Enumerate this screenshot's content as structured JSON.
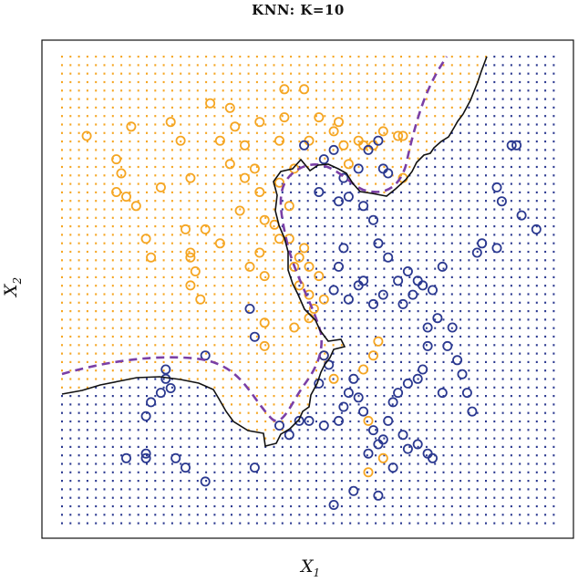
{
  "chart_data": {
    "type": "scatter",
    "title": "KNN: K=10",
    "xlabel": "X",
    "xlabel_sub": "1",
    "ylabel": "X",
    "ylabel_sub": "2",
    "xlim": [
      0,
      1
    ],
    "ylim": [
      0,
      1
    ],
    "grid_background": true,
    "colors": {
      "orange": "#f5a623",
      "blue": "#2b3990",
      "boundary": "#111111",
      "bayes": "#7a3fa6"
    },
    "series": [
      {
        "color": "orange",
        "points": [
          [
            0.05,
            0.83
          ],
          [
            0.11,
            0.78
          ],
          [
            0.14,
            0.85
          ],
          [
            0.12,
            0.75
          ],
          [
            0.11,
            0.71
          ],
          [
            0.13,
            0.7
          ],
          [
            0.17,
            0.61
          ],
          [
            0.15,
            0.68
          ],
          [
            0.18,
            0.57
          ],
          [
            0.2,
            0.72
          ],
          [
            0.22,
            0.86
          ],
          [
            0.24,
            0.82
          ],
          [
            0.26,
            0.74
          ],
          [
            0.25,
            0.63
          ],
          [
            0.26,
            0.57
          ],
          [
            0.26,
            0.51
          ],
          [
            0.26,
            0.58
          ],
          [
            0.27,
            0.54
          ],
          [
            0.28,
            0.48
          ],
          [
            0.29,
            0.63
          ],
          [
            0.3,
            0.9
          ],
          [
            0.32,
            0.82
          ],
          [
            0.34,
            0.89
          ],
          [
            0.34,
            0.77
          ],
          [
            0.35,
            0.85
          ],
          [
            0.37,
            0.81
          ],
          [
            0.37,
            0.74
          ],
          [
            0.36,
            0.67
          ],
          [
            0.39,
            0.76
          ],
          [
            0.4,
            0.86
          ],
          [
            0.4,
            0.71
          ],
          [
            0.41,
            0.65
          ],
          [
            0.4,
            0.58
          ],
          [
            0.41,
            0.53
          ],
          [
            0.41,
            0.43
          ],
          [
            0.38,
            0.55
          ],
          [
            0.32,
            0.6
          ],
          [
            0.43,
            0.64
          ],
          [
            0.44,
            0.73
          ],
          [
            0.44,
            0.82
          ],
          [
            0.45,
            0.87
          ],
          [
            0.45,
            0.93
          ],
          [
            0.46,
            0.68
          ],
          [
            0.46,
            0.61
          ],
          [
            0.48,
            0.51
          ],
          [
            0.48,
            0.57
          ],
          [
            0.49,
            0.59
          ],
          [
            0.5,
            0.55
          ],
          [
            0.5,
            0.49
          ],
          [
            0.5,
            0.44
          ],
          [
            0.51,
            0.46
          ],
          [
            0.52,
            0.53
          ],
          [
            0.53,
            0.48
          ],
          [
            0.47,
            0.42
          ],
          [
            0.49,
            0.93
          ],
          [
            0.47,
            0.76
          ],
          [
            0.5,
            0.82
          ],
          [
            0.52,
            0.87
          ],
          [
            0.55,
            0.84
          ],
          [
            0.56,
            0.86
          ],
          [
            0.57,
            0.81
          ],
          [
            0.58,
            0.77
          ],
          [
            0.6,
            0.82
          ],
          [
            0.61,
            0.81
          ],
          [
            0.63,
            0.81
          ],
          [
            0.65,
            0.84
          ],
          [
            0.69,
            0.83
          ],
          [
            0.69,
            0.74
          ],
          [
            0.68,
            0.83
          ],
          [
            0.55,
            0.31
          ],
          [
            0.53,
            0.36
          ],
          [
            0.41,
            0.38
          ],
          [
            0.62,
            0.22
          ],
          [
            0.61,
            0.33
          ],
          [
            0.63,
            0.36
          ],
          [
            0.64,
            0.39
          ],
          [
            0.65,
            0.14
          ],
          [
            0.62,
            0.11
          ],
          [
            0.44,
            0.61
          ],
          [
            0.47,
            0.55
          ]
        ]
      },
      {
        "color": "blue",
        "points": [
          [
            0.49,
            0.81
          ],
          [
            0.53,
            0.78
          ],
          [
            0.55,
            0.8
          ],
          [
            0.57,
            0.74
          ],
          [
            0.6,
            0.76
          ],
          [
            0.62,
            0.8
          ],
          [
            0.64,
            0.82
          ],
          [
            0.65,
            0.76
          ],
          [
            0.66,
            0.75
          ],
          [
            0.52,
            0.71
          ],
          [
            0.56,
            0.69
          ],
          [
            0.58,
            0.7
          ],
          [
            0.61,
            0.68
          ],
          [
            0.63,
            0.65
          ],
          [
            0.64,
            0.6
          ],
          [
            0.66,
            0.57
          ],
          [
            0.57,
            0.59
          ],
          [
            0.55,
            0.5
          ],
          [
            0.56,
            0.55
          ],
          [
            0.58,
            0.48
          ],
          [
            0.6,
            0.51
          ],
          [
            0.61,
            0.52
          ],
          [
            0.63,
            0.47
          ],
          [
            0.65,
            0.49
          ],
          [
            0.68,
            0.52
          ],
          [
            0.69,
            0.47
          ],
          [
            0.7,
            0.54
          ],
          [
            0.71,
            0.49
          ],
          [
            0.72,
            0.52
          ],
          [
            0.73,
            0.51
          ],
          [
            0.74,
            0.42
          ],
          [
            0.75,
            0.5
          ],
          [
            0.76,
            0.44
          ],
          [
            0.77,
            0.55
          ],
          [
            0.78,
            0.38
          ],
          [
            0.79,
            0.42
          ],
          [
            0.8,
            0.35
          ],
          [
            0.81,
            0.32
          ],
          [
            0.82,
            0.28
          ],
          [
            0.83,
            0.24
          ],
          [
            0.74,
            0.38
          ],
          [
            0.73,
            0.33
          ],
          [
            0.72,
            0.31
          ],
          [
            0.7,
            0.3
          ],
          [
            0.68,
            0.28
          ],
          [
            0.67,
            0.26
          ],
          [
            0.66,
            0.22
          ],
          [
            0.65,
            0.18
          ],
          [
            0.64,
            0.17
          ],
          [
            0.63,
            0.2
          ],
          [
            0.62,
            0.15
          ],
          [
            0.61,
            0.24
          ],
          [
            0.6,
            0.27
          ],
          [
            0.59,
            0.31
          ],
          [
            0.58,
            0.28
          ],
          [
            0.57,
            0.25
          ],
          [
            0.56,
            0.22
          ],
          [
            0.54,
            0.34
          ],
          [
            0.53,
            0.36
          ],
          [
            0.52,
            0.3
          ],
          [
            0.88,
            0.72
          ],
          [
            0.89,
            0.69
          ],
          [
            0.91,
            0.81
          ],
          [
            0.92,
            0.81
          ],
          [
            0.93,
            0.66
          ],
          [
            0.96,
            0.63
          ],
          [
            0.88,
            0.59
          ],
          [
            0.84,
            0.58
          ],
          [
            0.85,
            0.6
          ],
          [
            0.77,
            0.28
          ],
          [
            0.75,
            0.14
          ],
          [
            0.74,
            0.15
          ],
          [
            0.72,
            0.17
          ],
          [
            0.7,
            0.16
          ],
          [
            0.69,
            0.19
          ],
          [
            0.67,
            0.12
          ],
          [
            0.64,
            0.06
          ],
          [
            0.59,
            0.07
          ],
          [
            0.55,
            0.04
          ],
          [
            0.53,
            0.21
          ],
          [
            0.5,
            0.22
          ],
          [
            0.29,
            0.09
          ],
          [
            0.23,
            0.14
          ],
          [
            0.25,
            0.12
          ],
          [
            0.2,
            0.28
          ],
          [
            0.18,
            0.26
          ],
          [
            0.17,
            0.23
          ],
          [
            0.17,
            0.15
          ],
          [
            0.17,
            0.14
          ],
          [
            0.13,
            0.14
          ],
          [
            0.21,
            0.33
          ],
          [
            0.21,
            0.31
          ],
          [
            0.22,
            0.29
          ],
          [
            0.39,
            0.12
          ],
          [
            0.29,
            0.36
          ],
          [
            0.38,
            0.46
          ],
          [
            0.39,
            0.4
          ],
          [
            0.48,
            0.22
          ],
          [
            0.46,
            0.19
          ],
          [
            0.44,
            0.21
          ]
        ]
      }
    ]
  }
}
